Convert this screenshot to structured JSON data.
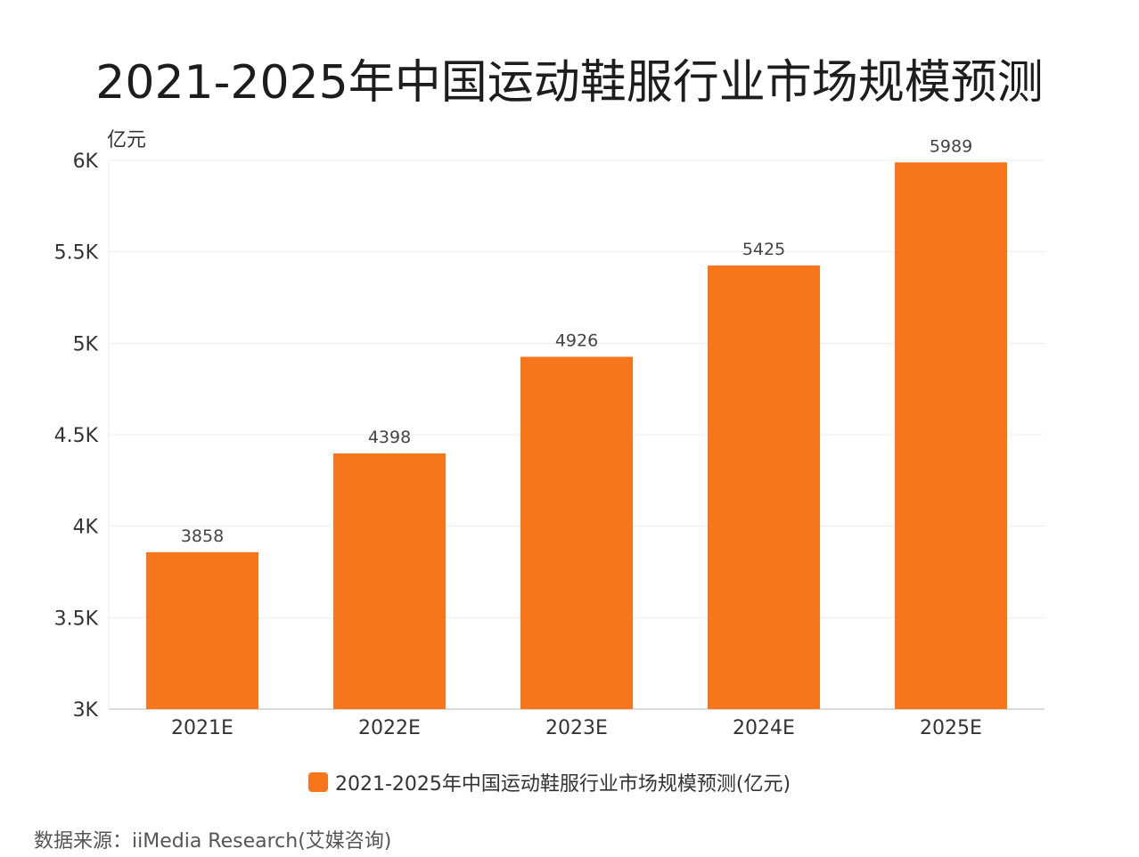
{
  "title": "2021-2025年中国运动鞋服行业市场规模预测",
  "source": "数据来源：iiMedia Research(艾媒咨询)",
  "colors": {
    "bar": "#f7751b",
    "grid": "#ececec",
    "axis": "#cfcfcf"
  },
  "chart_data": {
    "type": "bar",
    "title": "2021-2025年中国运动鞋服行业市场规模预测",
    "ylabel": "亿元",
    "xlabel": "",
    "categories": [
      "2021E",
      "2022E",
      "2023E",
      "2024E",
      "2025E"
    ],
    "ylim": [
      3000,
      6000
    ],
    "ytick_labels": [
      "3K",
      "3.5K",
      "4K",
      "4.5K",
      "5K",
      "5.5K",
      "6K"
    ],
    "grid": true,
    "legend_position": "bottom",
    "series": [
      {
        "name": "2021-2025年中国运动鞋服行业市场规模预测(亿元)",
        "values": [
          3858,
          4398,
          4926,
          5425,
          5989
        ]
      }
    ]
  }
}
